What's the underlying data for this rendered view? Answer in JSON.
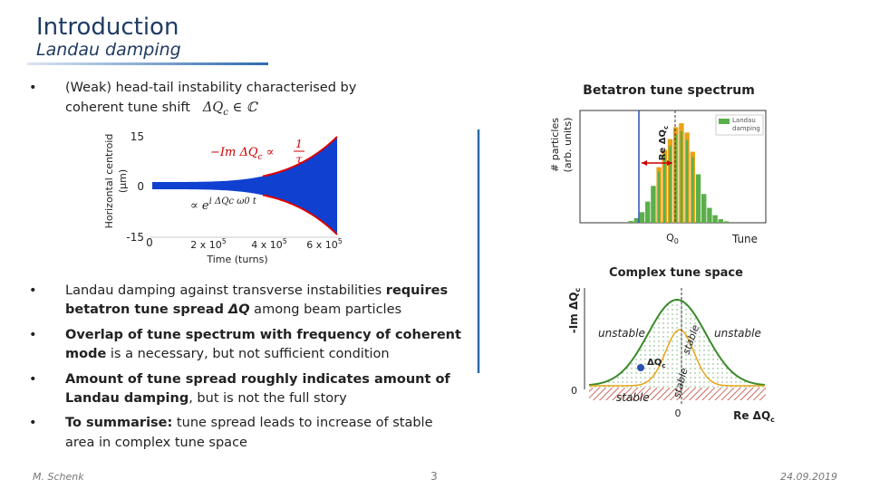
{
  "header": {
    "title": "Introduction",
    "subtitle": "Landau damping"
  },
  "bullets": [
    {
      "lines": [
        [
          {
            "text": "(Weak) head-tail instability characterised by"
          }
        ],
        [
          {
            "text": "coherent tune shift"
          }
        ]
      ],
      "formula": {
        "text": "ΔQ",
        "sub": "c",
        "rest": " ∈ ℂ"
      }
    },
    {
      "lines": [
        [
          {
            "text": "Landau damping against transverse instabilities "
          },
          {
            "text": "requires",
            "bold": true
          }
        ],
        [
          {
            "text": "betatron tune spread ",
            "bold": true
          },
          {
            "text": "ΔQ",
            "bold": true,
            "italic": true
          },
          {
            "text": " among beam particles"
          }
        ]
      ]
    },
    {
      "lines": [
        [
          {
            "text": "Overlap of tune spectrum with frequency of coherent",
            "bold": true
          }
        ],
        [
          {
            "text": "mode",
            "bold": true
          },
          {
            "text": " is a necessary, but not sufficient condition"
          }
        ]
      ]
    },
    {
      "lines": [
        [
          {
            "text": "Amount of tune spread roughly indicates amount of",
            "bold": true
          }
        ],
        [
          {
            "text": "Landau damping",
            "bold": true
          },
          {
            "text": ", but is not the full story"
          }
        ]
      ]
    },
    {
      "lines": [
        [
          {
            "text": "To summarise:",
            "bold": true
          },
          {
            "text": " tune spread leads to increase of stable"
          }
        ],
        [
          {
            "text": "area in complex tune space"
          }
        ]
      ]
    }
  ],
  "plot_centroid": {
    "ylabel": [
      "Horizontal centroid",
      "(µm)"
    ],
    "yticks": [
      "15",
      "0",
      "-15"
    ],
    "xticks": [
      {
        "text": "0"
      },
      {
        "text": "2 x 10",
        "sup": "5"
      },
      {
        "text": "4 x 10",
        "sup": "5"
      },
      {
        "text": "6 x 10",
        "sup": "5"
      }
    ],
    "xlabel": "Time (turns)",
    "growth_formula": {
      "lhs": "−Im ΔQ",
      "sub": "c",
      "op": " ∝ ",
      "num": "1",
      "den": "τ"
    },
    "signal_formula": {
      "pre": "∝ e",
      "sup": "i ΔQc ω0 t"
    }
  },
  "plot_spectrum": {
    "title": "Betatron tune spectrum",
    "ylabel": [
      "# particles",
      "(arb. units)"
    ],
    "shift_label": {
      "text": "Re ΔQ",
      "sub": "c"
    },
    "legend": [
      "Landau",
      "damping"
    ],
    "xlabel_center": {
      "text": "Q",
      "sub": "0"
    },
    "xlabel": "Tune"
  },
  "plot_complex": {
    "title": "Complex tune space",
    "ylabel": {
      "text": "-Im ΔQ",
      "sub": "c"
    },
    "regions": [
      "unstable",
      "unstable",
      "stable",
      "stable",
      "stable"
    ],
    "point": {
      "text": "ΔQ",
      "sub": "c"
    },
    "origin_y": "0",
    "origin_x": "0",
    "xlabel": {
      "text": "Re ΔQ",
      "sub": "c"
    }
  },
  "footer": {
    "author": "M. Schenk",
    "page": "3",
    "date": "24.09.2019"
  }
}
